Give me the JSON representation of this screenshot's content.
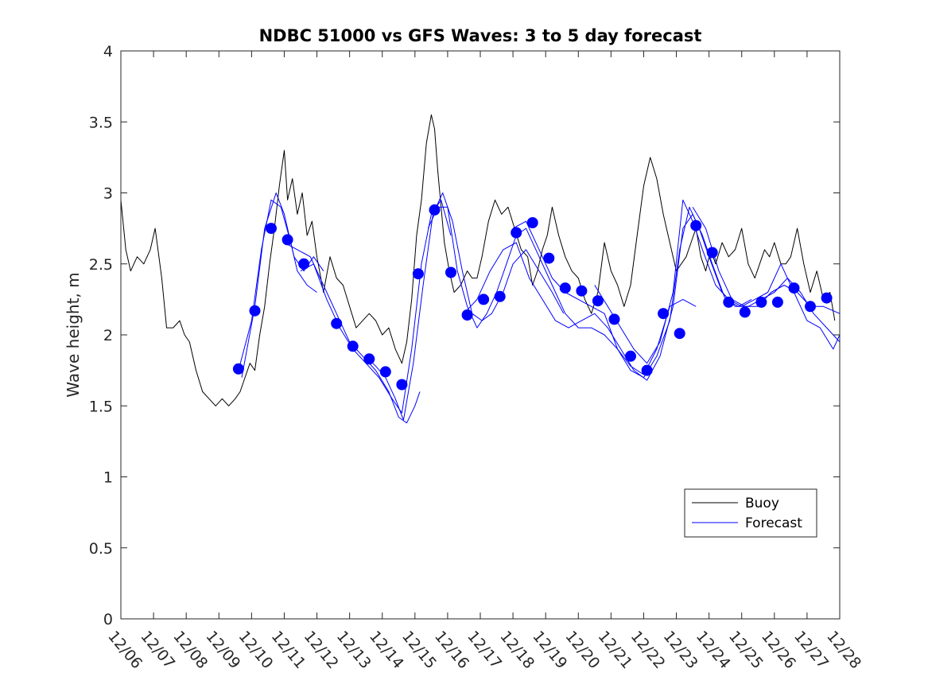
{
  "chart_data": {
    "type": "line",
    "title": "NDBC 51000 vs GFS Waves: 3 to 5 day forecast",
    "xlabel": "",
    "ylabel": "Wave height, m",
    "xlim": [
      0,
      22
    ],
    "ylim": [
      0,
      4
    ],
    "yticks": [
      0,
      0.5,
      1,
      1.5,
      2,
      2.5,
      3,
      3.5,
      4
    ],
    "ytick_labels": [
      "0",
      "0.5",
      "1",
      "1.5",
      "2",
      "2.5",
      "3",
      "3.5",
      "4"
    ],
    "xtick_labels": [
      "12/06",
      "12/07",
      "12/08",
      "12/09",
      "12/10",
      "12/11",
      "12/12",
      "12/13",
      "12/14",
      "12/15",
      "12/16",
      "12/17",
      "12/18",
      "12/19",
      "12/20",
      "12/21",
      "12/22",
      "12/23",
      "12/24",
      "12/25",
      "12/26",
      "12/27",
      "12/28"
    ],
    "x_units": "days since 12/06",
    "legend": {
      "position": "bottom-right",
      "entries": [
        {
          "label": "Buoy",
          "color": "#000000"
        },
        {
          "label": "Forecast",
          "color": "#0000ff"
        }
      ]
    },
    "series": [
      {
        "name": "Buoy",
        "color": "#000000",
        "x": [
          0,
          0.15,
          0.3,
          0.5,
          0.7,
          0.9,
          1.05,
          1.25,
          1.4,
          1.6,
          1.8,
          1.95,
          2.1,
          2.3,
          2.5,
          2.7,
          2.9,
          3.1,
          3.3,
          3.5,
          3.65,
          3.8,
          3.95,
          4.1,
          4.25,
          4.4,
          4.55,
          4.7,
          4.85,
          5.0,
          5.1,
          5.25,
          5.4,
          5.55,
          5.7,
          5.85,
          6.0,
          6.2,
          6.4,
          6.6,
          6.8,
          7.0,
          7.2,
          7.4,
          7.6,
          7.8,
          8.0,
          8.2,
          8.4,
          8.6,
          8.75,
          8.9,
          9.05,
          9.2,
          9.35,
          9.5,
          9.6,
          9.7,
          9.8,
          9.9,
          10.05,
          10.2,
          10.4,
          10.6,
          10.75,
          10.9,
          11.05,
          11.25,
          11.45,
          11.65,
          11.85,
          12.05,
          12.25,
          12.45,
          12.6,
          12.75,
          12.9,
          13.05,
          13.2,
          13.4,
          13.6,
          13.8,
          14.0,
          14.2,
          14.4,
          14.6,
          14.8,
          15.0,
          15.2,
          15.4,
          15.6,
          15.8,
          16.0,
          16.2,
          16.4,
          16.6,
          16.8,
          17.0,
          17.15,
          17.3,
          17.45,
          17.6,
          17.75,
          17.9,
          18.05,
          18.2,
          18.4,
          18.6,
          18.8,
          19.0,
          19.2,
          19.4,
          19.55,
          19.7,
          19.85,
          20.0,
          20.2,
          20.35,
          20.5,
          20.7,
          20.9,
          21.1,
          21.3,
          21.5,
          21.7,
          21.85
        ],
        "values": [
          2.95,
          2.6,
          2.45,
          2.55,
          2.5,
          2.6,
          2.75,
          2.4,
          2.05,
          2.05,
          2.1,
          2.0,
          1.95,
          1.75,
          1.6,
          1.55,
          1.5,
          1.55,
          1.5,
          1.55,
          1.6,
          1.7,
          1.8,
          1.75,
          2.0,
          2.2,
          2.5,
          2.75,
          3.05,
          3.3,
          2.95,
          3.1,
          2.85,
          3.0,
          2.7,
          2.8,
          2.55,
          2.3,
          2.55,
          2.4,
          2.35,
          2.2,
          2.05,
          2.1,
          2.15,
          2.1,
          2.0,
          2.05,
          1.9,
          1.8,
          1.95,
          2.25,
          2.7,
          2.95,
          3.35,
          3.55,
          3.45,
          3.15,
          2.9,
          2.65,
          2.45,
          2.3,
          2.35,
          2.45,
          2.4,
          2.4,
          2.55,
          2.8,
          2.95,
          2.85,
          2.9,
          2.75,
          2.6,
          2.55,
          2.35,
          2.45,
          2.6,
          2.7,
          2.9,
          2.7,
          2.55,
          2.45,
          2.4,
          2.25,
          2.15,
          2.3,
          2.65,
          2.45,
          2.35,
          2.2,
          2.35,
          2.7,
          3.05,
          3.25,
          3.1,
          2.85,
          2.65,
          2.45,
          2.5,
          2.55,
          2.65,
          2.75,
          2.55,
          2.45,
          2.6,
          2.5,
          2.65,
          2.55,
          2.6,
          2.75,
          2.5,
          2.4,
          2.5,
          2.6,
          2.55,
          2.65,
          2.5,
          2.5,
          2.55,
          2.75,
          2.5,
          2.3,
          2.45,
          2.25,
          2.3,
          2.1
        ]
      },
      {
        "name": "Forecast",
        "color": "#0000ff",
        "x": [
          3.6,
          4.0,
          4.3,
          4.6,
          4.9,
          5.2,
          5.4,
          5.7,
          6.0
        ],
        "values": [
          1.75,
          2.1,
          2.6,
          2.95,
          2.9,
          2.65,
          2.45,
          2.35,
          2.3
        ]
      },
      {
        "name": "Forecast",
        "color": "#0000ff",
        "x": [
          3.7,
          4.1,
          4.4,
          4.75,
          5.0,
          5.3,
          5.6,
          5.9,
          6.2
        ],
        "values": [
          1.7,
          2.2,
          2.75,
          3.0,
          2.85,
          2.55,
          2.45,
          2.55,
          2.45
        ]
      },
      {
        "name": "Forecast",
        "color": "#0000ff",
        "x": [
          5.0,
          5.4,
          5.8,
          6.2,
          6.6,
          7.0,
          7.4,
          7.8,
          8.2,
          8.5,
          8.75,
          9.0,
          9.15
        ],
        "values": [
          2.65,
          2.6,
          2.55,
          2.35,
          2.15,
          1.95,
          1.85,
          1.75,
          1.6,
          1.42,
          1.38,
          1.5,
          1.6
        ]
      },
      {
        "name": "Forecast",
        "color": "#0000ff",
        "x": [
          5.5,
          5.9,
          6.3,
          6.7,
          7.1,
          7.5,
          7.9,
          8.3,
          8.6,
          8.9,
          9.2,
          9.5,
          9.8,
          10.1
        ],
        "values": [
          2.45,
          2.5,
          2.25,
          2.05,
          1.9,
          1.8,
          1.7,
          1.55,
          1.45,
          1.9,
          2.5,
          2.85,
          2.95,
          2.7
        ]
      },
      {
        "name": "Forecast",
        "color": "#0000ff",
        "x": [
          7.5,
          7.8,
          8.1,
          8.4,
          8.65,
          8.95,
          9.25,
          9.55,
          9.85,
          10.15,
          10.45,
          10.75,
          11.05,
          11.35,
          11.7,
          12.0,
          12.4,
          12.8,
          13.2,
          13.55
        ],
        "values": [
          1.85,
          1.78,
          1.7,
          1.55,
          1.4,
          1.8,
          2.35,
          2.85,
          3.0,
          2.8,
          2.45,
          2.15,
          2.1,
          2.15,
          2.3,
          2.5,
          2.6,
          2.45,
          2.3,
          2.15
        ]
      },
      {
        "name": "Forecast",
        "color": "#0000ff",
        "x": [
          9.4,
          9.7,
          10.0,
          10.3,
          10.6,
          10.9,
          11.2,
          11.5,
          11.8,
          12.1,
          12.4,
          12.8,
          13.2,
          13.6,
          14.0,
          14.4,
          14.8,
          15.2,
          15.6,
          16.0,
          16.4,
          16.8,
          17.2,
          17.6
        ],
        "values": [
          2.75,
          2.9,
          2.9,
          2.45,
          2.2,
          2.05,
          2.15,
          2.3,
          2.5,
          2.7,
          2.75,
          2.55,
          2.35,
          2.15,
          2.05,
          2.05,
          2.0,
          1.9,
          1.78,
          1.72,
          1.9,
          2.2,
          2.25,
          2.2
        ]
      },
      {
        "name": "Forecast",
        "color": "#0000ff",
        "x": [
          10.5,
          10.9,
          11.3,
          11.7,
          12.1,
          12.5,
          12.9,
          13.3,
          13.7,
          14.1,
          14.5,
          14.9,
          15.3,
          15.7,
          16.1,
          16.5,
          16.9,
          17.2,
          17.5,
          17.8,
          18.1,
          18.5,
          18.9,
          19.3
        ],
        "values": [
          2.15,
          2.25,
          2.45,
          2.6,
          2.65,
          2.4,
          2.25,
          2.1,
          2.05,
          2.1,
          2.15,
          2.05,
          1.9,
          1.75,
          1.68,
          1.85,
          2.2,
          2.75,
          2.85,
          2.7,
          2.5,
          2.25,
          2.2,
          2.25
        ]
      },
      {
        "name": "Forecast",
        "color": "#0000ff",
        "x": [
          12.0,
          12.4,
          12.8,
          13.2,
          13.6,
          14.0,
          14.4,
          14.8,
          15.2,
          15.6,
          16.0,
          16.4,
          16.8,
          17.1,
          17.4,
          17.7,
          18.0,
          18.4,
          18.8,
          19.2,
          19.6,
          20.0,
          20.4,
          20.8,
          21.2,
          21.6,
          22.0
        ],
        "values": [
          2.75,
          2.8,
          2.6,
          2.4,
          2.3,
          2.25,
          2.2,
          2.15,
          1.9,
          1.75,
          1.7,
          1.85,
          2.1,
          2.6,
          2.9,
          2.75,
          2.55,
          2.3,
          2.2,
          2.2,
          2.25,
          2.3,
          2.4,
          2.3,
          2.15,
          2.05,
          1.95
        ]
      },
      {
        "name": "Forecast",
        "color": "#0000ff",
        "x": [
          14.5,
          14.9,
          15.3,
          15.7,
          16.1,
          16.5,
          16.9,
          17.2,
          17.5,
          17.8,
          18.2,
          18.6,
          19.0,
          19.4,
          19.8,
          20.2,
          20.6,
          21.0,
          21.4,
          21.8,
          22.0
        ],
        "values": [
          2.35,
          2.2,
          2.05,
          1.9,
          1.8,
          1.95,
          2.3,
          2.95,
          2.8,
          2.6,
          2.35,
          2.25,
          2.2,
          2.25,
          2.3,
          2.5,
          2.3,
          2.1,
          2.05,
          1.9,
          2.0
        ]
      },
      {
        "name": "Forecast",
        "color": "#0000ff",
        "x": [
          17.5,
          17.9,
          18.3,
          18.7,
          19.1,
          19.5,
          19.9,
          20.3,
          20.7,
          21.1,
          21.5,
          22.0
        ],
        "values": [
          2.9,
          2.75,
          2.45,
          2.25,
          2.2,
          2.2,
          2.3,
          2.35,
          2.3,
          2.2,
          2.2,
          2.15
        ]
      }
    ],
    "markers": {
      "name": "Forecast (daily points)",
      "color": "#0000ff",
      "x": [
        3.6,
        4.1,
        4.6,
        5.1,
        5.6,
        6.6,
        7.1,
        7.6,
        8.1,
        8.6,
        9.1,
        9.6,
        10.1,
        10.6,
        11.1,
        11.6,
        12.1,
        12.6,
        13.1,
        13.6,
        14.1,
        14.6,
        15.1,
        15.6,
        16.1,
        16.6,
        17.1,
        17.6,
        18.1,
        18.6,
        19.1,
        19.6,
        20.1,
        20.6,
        21.1,
        21.6
      ],
      "values": [
        1.76,
        2.17,
        2.75,
        2.67,
        2.5,
        2.08,
        1.92,
        1.83,
        1.74,
        1.65,
        2.43,
        2.88,
        2.44,
        2.14,
        2.25,
        2.27,
        2.72,
        2.79,
        2.54,
        2.33,
        2.31,
        2.24,
        2.11,
        1.85,
        1.75,
        2.15,
        2.01,
        2.77,
        2.58,
        2.23,
        2.16,
        2.23,
        2.23,
        2.33,
        2.2,
        2.26
      ]
    }
  }
}
